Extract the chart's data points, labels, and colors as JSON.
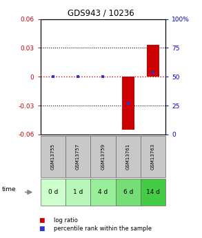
{
  "title": "GDS943 / 10236",
  "samples": [
    "GSM13755",
    "GSM13757",
    "GSM13759",
    "GSM13761",
    "GSM13763"
  ],
  "timepoints": [
    "0 d",
    "1 d",
    "4 d",
    "6 d",
    "14 d"
  ],
  "log_ratios": [
    0.0,
    0.0,
    0.0,
    -0.055,
    0.033
  ],
  "percentile_ranks": [
    50,
    50,
    50,
    27,
    54
  ],
  "ylim_left": [
    -0.06,
    0.06
  ],
  "ylim_right": [
    0,
    100
  ],
  "yticks_left": [
    -0.06,
    -0.03,
    0,
    0.03,
    0.06
  ],
  "yticks_right": [
    0,
    25,
    50,
    75,
    100
  ],
  "bar_color": "#cc0000",
  "dot_color": "#3333cc",
  "zero_line_color": "#cc0000",
  "grid_color": "#000000",
  "header_bg": "#c8c8c8",
  "time_bg_colors": [
    "#ccffcc",
    "#b8f5b8",
    "#99ee99",
    "#77dd77",
    "#44cc44"
  ],
  "left_label_color": "#cc0000",
  "right_label_color": "#0000cc",
  "legend_items": [
    "log ratio",
    "percentile rank within the sample"
  ],
  "legend_colors": [
    "#cc0000",
    "#3333cc"
  ],
  "fig_width": 2.93,
  "fig_height": 3.45,
  "dpi": 100
}
